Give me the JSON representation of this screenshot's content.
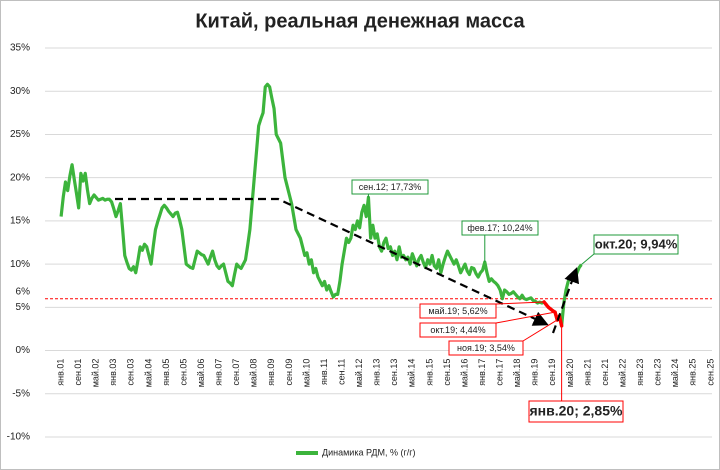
{
  "chart_data": {
    "type": "line",
    "title": "Китай, реальная денежная масса",
    "categories": [
      "янв.01",
      null,
      null,
      null,
      null,
      null,
      null,
      null,
      "сен.01",
      null,
      null,
      null,
      null,
      null,
      null,
      null,
      "май.02",
      null,
      null,
      null,
      null,
      null,
      null,
      null,
      "янв.03",
      null,
      null,
      null,
      null,
      null,
      null,
      null,
      "сен.03",
      null,
      null,
      null,
      null,
      null,
      null,
      null,
      "май.04",
      null,
      null,
      null,
      null,
      null,
      null,
      null,
      "янв.05",
      null,
      null,
      null,
      null,
      null,
      null,
      null,
      "сен.05",
      null,
      null,
      null,
      null,
      null,
      null,
      null,
      "май.06",
      null,
      null,
      null,
      null,
      null,
      null,
      null,
      "янв.07",
      null,
      null,
      null,
      null,
      null,
      null,
      null,
      "сен.07",
      null,
      null,
      null,
      null,
      null,
      null,
      null,
      "май.08",
      null,
      null,
      null,
      null,
      null,
      null,
      null,
      "янв.09",
      null,
      null,
      null,
      null,
      null,
      null,
      null,
      "сен.09",
      null,
      null,
      null,
      null,
      null,
      null,
      null,
      "май.10",
      null,
      null,
      null,
      null,
      null,
      null,
      null,
      "янв.11",
      null,
      null,
      null,
      null,
      null,
      null,
      null,
      "сен.11",
      null,
      null,
      null,
      null,
      null,
      null,
      null,
      "май.12",
      null,
      null,
      null,
      null,
      null,
      null,
      null,
      "янв.13",
      null,
      null,
      null,
      null,
      null,
      null,
      null,
      "сен.13",
      null,
      null,
      null,
      null,
      null,
      null,
      null,
      "май.14",
      null,
      null,
      null,
      null,
      null,
      null,
      null,
      "янв.15",
      null,
      null,
      null,
      null,
      null,
      null,
      null,
      "сен.15",
      null,
      null,
      null,
      null,
      null,
      null,
      null,
      "май.16",
      null,
      null,
      null,
      null,
      null,
      null,
      null,
      "янв.17",
      null,
      null,
      null,
      null,
      null,
      null,
      null,
      "сен.17",
      null,
      null,
      null,
      null,
      null,
      null,
      null,
      "май.18",
      null,
      null,
      null,
      null,
      null,
      null,
      null,
      "янв.19",
      null,
      null,
      null,
      null,
      null,
      null,
      null,
      "сен.19",
      null,
      null,
      null,
      null,
      null,
      null,
      null,
      "май.20",
      null,
      null,
      null,
      null,
      null,
      null,
      null,
      "янв.21",
      null,
      null,
      null,
      null,
      null,
      null,
      null,
      "сен.21",
      null,
      null,
      null,
      null,
      null,
      null,
      null,
      "май.22",
      null,
      null,
      null,
      null,
      null,
      null,
      null,
      "янв.23",
      null,
      null,
      null,
      null,
      null,
      null,
      null,
      "сен.23",
      null,
      null,
      null,
      null,
      null,
      null,
      null,
      "май.24",
      null,
      null,
      null,
      null,
      null,
      null,
      null,
      "янв.25",
      null,
      null,
      null,
      null,
      null,
      null,
      null,
      "сен.25"
    ],
    "series": [
      {
        "name": "Динамика  РДМ, % (г/г)",
        "color": "#3cb43c",
        "values": [
          15.5,
          17.8,
          19.5,
          18.5,
          20.2,
          21.5,
          19.8,
          18.2,
          16.5,
          20.5,
          19.6,
          20.5,
          18.6,
          17.0,
          17.6,
          18.0,
          17.7,
          17.4,
          17.5,
          17.6,
          17.4,
          17.5,
          17.5,
          17.2,
          16.4,
          15.5,
          16.2,
          17.0,
          14.1,
          11.0,
          10.2,
          9.5,
          9.3,
          9.7,
          9.0,
          10.4,
          12.0,
          11.6,
          12.3,
          12.0,
          11.0,
          10.0,
          12.1,
          14.0,
          14.9,
          15.7,
          16.5,
          16.8,
          16.5,
          16.1,
          15.8,
          15.5,
          15.9,
          16.0,
          15.1,
          14.0,
          12.0,
          10.0,
          9.8,
          9.6,
          9.5,
          10.5,
          11.5,
          11.3,
          11.1,
          11.0,
          10.5,
          10.0,
          10.8,
          11.5,
          10.5,
          9.8,
          9.5,
          9.8,
          10.0,
          9.0,
          8.0,
          7.8,
          7.5,
          8.8,
          10.0,
          9.7,
          9.5,
          10.0,
          10.5,
          12.2,
          14.0,
          17.0,
          20.0,
          23.0,
          26.0,
          26.8,
          27.5,
          30.5,
          30.8,
          30.5,
          29.2,
          28.0,
          25.0,
          24.5,
          24.0,
          22.0,
          20.0,
          19.0,
          18.0,
          17.0,
          15.5,
          14.0,
          13.5,
          13.0,
          12.0,
          11.0,
          11.3,
          10.0,
          10.5,
          9.0,
          9.5,
          8.5,
          8.0,
          7.5,
          8.0,
          7.0,
          7.5,
          6.8,
          6.2,
          6.5,
          6.5,
          8.0,
          10.0,
          11.5,
          13.0,
          12.5,
          13.0,
          14.5,
          14.0,
          15.0,
          14.2,
          16.0,
          16.8,
          15.5,
          17.73,
          13.0,
          14.5,
          13.0,
          13.5,
          12.0,
          11.5,
          12.5,
          13.0,
          11.8,
          12.0,
          11.0,
          11.5,
          10.5,
          12.0,
          10.8,
          11.0,
          10.5,
          10.8,
          10.0,
          11.2,
          10.5,
          9.8,
          10.6,
          11.0,
          10.2,
          9.6,
          10.5,
          10.0,
          11.0,
          9.8,
          9.5,
          10.5,
          9.0,
          10.0,
          10.8,
          11.5,
          11.0,
          10.5,
          10.0,
          10.5,
          9.8,
          9.0,
          9.5,
          10.0,
          9.2,
          8.8,
          9.6,
          9.5,
          8.9,
          8.5,
          9.0,
          9.3,
          10.24,
          9.0,
          8.0,
          8.3,
          8.0,
          7.8,
          7.5,
          7.0,
          6.0,
          7.0,
          6.8,
          6.5,
          6.6,
          6.8,
          6.5,
          6.2,
          6.0,
          6.4,
          6.0,
          5.9,
          6.0,
          6.1,
          5.8,
          5.7,
          5.5,
          5.6,
          5.5,
          5.62,
          5.3,
          5.0,
          4.8,
          4.6,
          4.44,
          3.54,
          4.0,
          2.85,
          5.5,
          7.0,
          8.0,
          8.5,
          8.4,
          8.2,
          9.0,
          9.6,
          9.94,
          null,
          null,
          null,
          null,
          null,
          null,
          null,
          null,
          null,
          null,
          null,
          null,
          null,
          null,
          null,
          null,
          null,
          null,
          null,
          null,
          null,
          null,
          null,
          null,
          null,
          null,
          null,
          null,
          null,
          null,
          null,
          null,
          null,
          null,
          null,
          null,
          null,
          null,
          null,
          null,
          null,
          null,
          null,
          null,
          null,
          null,
          null,
          null,
          null,
          null,
          null,
          null,
          null,
          null,
          null,
          null,
          null,
          null,
          null
        ]
      }
    ],
    "ylim": [
      -10,
      35
    ],
    "yticks": [
      {
        "value": -10,
        "label": "-10%"
      },
      {
        "value": -5,
        "label": "-5%"
      },
      {
        "value": 0,
        "label": "0%"
      },
      {
        "value": 5,
        "label": "5%"
      },
      {
        "value": 10,
        "label": "10%"
      },
      {
        "value": 15,
        "label": "15%"
      },
      {
        "value": 20,
        "label": "20%"
      },
      {
        "value": 25,
        "label": "25%"
      },
      {
        "value": 30,
        "label": "30%"
      },
      {
        "value": 35,
        "label": "35%"
      }
    ],
    "grid": true,
    "reference_line": {
      "value": 6,
      "label": "6%",
      "color": "#ff0000"
    },
    "highlight_color": "#ff0000",
    "annotations": [
      {
        "text": "сен.12; 17,73%",
        "value": 17.73,
        "color": "#1f9a3a"
      },
      {
        "text": "фев.17; 10,24%",
        "value": 10.24,
        "color": "#1f9a3a"
      },
      {
        "text": "окт.20; 9,94%",
        "value": 9.94,
        "color": "#1f9a3a"
      },
      {
        "text": "май.19; 5,62%",
        "value": 5.62,
        "color": "#ff0000"
      },
      {
        "text": "окт.19; 4,44%",
        "value": 4.44,
        "color": "#ff0000"
      },
      {
        "text": "ноя.19; 3,54%",
        "value": 3.54,
        "color": "#ff0000"
      },
      {
        "text": "янв.20; 2,85%",
        "value": 2.85,
        "color": "#ff0000"
      }
    ],
    "legend": "bottom"
  }
}
